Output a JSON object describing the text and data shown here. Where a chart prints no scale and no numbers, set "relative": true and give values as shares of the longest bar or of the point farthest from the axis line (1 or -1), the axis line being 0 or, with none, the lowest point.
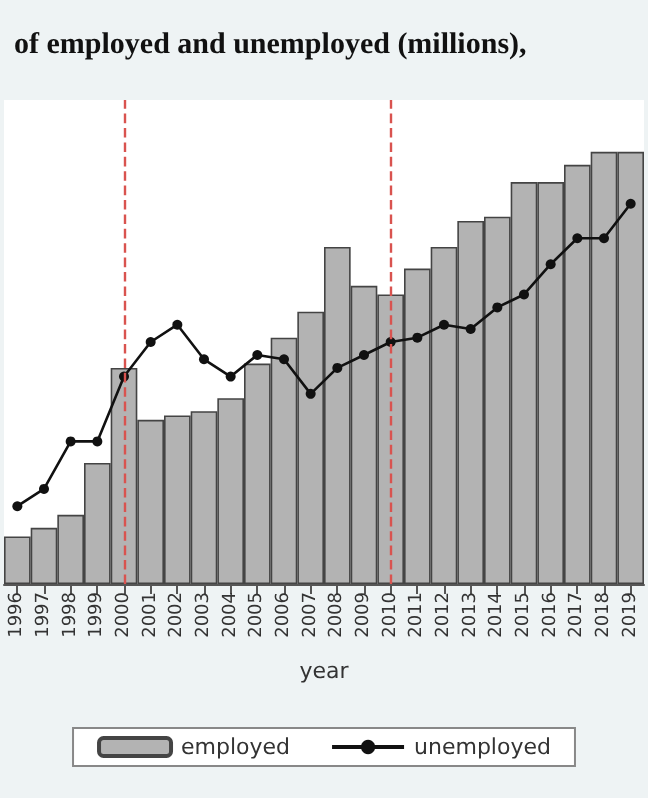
{
  "chart_data": {
    "type": "bar",
    "title": "of employed and unemployed (millions),",
    "xlabel": "year",
    "relative": true,
    "categories": [
      "1996",
      "1997",
      "1998",
      "1999",
      "2000",
      "2001",
      "2002",
      "2003",
      "2004",
      "2005",
      "2006",
      "2007",
      "2008",
      "2009",
      "2010",
      "2011",
      "2012",
      "2013",
      "2014",
      "2015",
      "2016",
      "2017",
      "2018",
      "2019"
    ],
    "series": [
      {
        "name": "employed",
        "color": "#b3b3b3",
        "values": [
          0.11,
          0.13,
          0.16,
          0.28,
          0.5,
          0.38,
          0.39,
          0.4,
          0.43,
          0.51,
          0.57,
          0.63,
          0.78,
          0.69,
          0.67,
          0.73,
          0.78,
          0.84,
          0.85,
          0.93,
          0.93,
          0.97,
          1,
          1
        ]
      },
      {
        "name": "unemployed",
        "type": "line",
        "color": "#111111",
        "marker": "circle",
        "values": [
          0.18,
          0.22,
          0.33,
          0.33,
          0.48,
          0.56,
          0.6,
          0.52,
          0.48,
          0.53,
          0.52,
          0.44,
          0.5,
          0.53,
          0.56,
          0.57,
          0.6,
          0.59,
          0.64,
          0.67,
          0.74,
          0.8,
          0.8,
          0.88
        ]
      }
    ],
    "ref_lines": [
      {
        "axis": "x",
        "value": "2000",
        "color": "#d9534f",
        "line_style": "dashed"
      },
      {
        "axis": "x",
        "value": "2010",
        "color": "#d9534f",
        "line_style": "dashed"
      }
    ],
    "legend": "bottom"
  }
}
